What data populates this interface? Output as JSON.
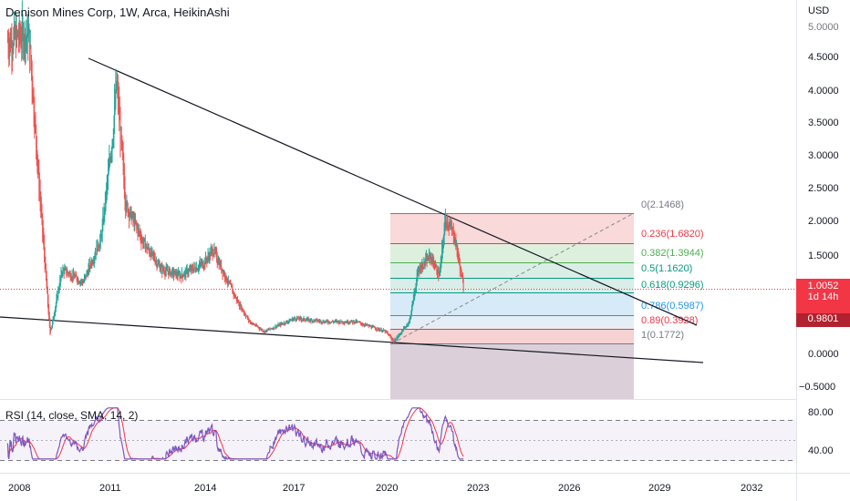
{
  "header": {
    "title": "Denison Mines Corp, 1W, Arca, HeikinAshi",
    "currency": "USD"
  },
  "price_axis": {
    "labels": [
      "4.5000",
      "4.0000",
      "3.5000",
      "3.0000",
      "2.5000",
      "2.0000",
      "1.5000",
      "0.0000",
      "−0.5000"
    ],
    "top_partial": "5.0000"
  },
  "price_tags": {
    "last": "1.0052",
    "countdown": "1d 14h",
    "prev": "0.9801"
  },
  "time_axis": {
    "labels": [
      "2008",
      "2011",
      "2014",
      "2017",
      "2020",
      "2023",
      "2026",
      "2029",
      "2032"
    ]
  },
  "fib": {
    "levels": [
      {
        "label": "0(2.1468)",
        "color": "#787b86"
      },
      {
        "label": "0.236(1.6820)",
        "color": "#f23645"
      },
      {
        "label": "0.382(1.3944)",
        "color": "#4caf50"
      },
      {
        "label": "0.5(1.1620)",
        "color": "#089981"
      },
      {
        "label": "0.618(0.9296)",
        "color": "#089981"
      },
      {
        "label": "0.786(0.5987)",
        "color": "#2196f3"
      },
      {
        "label": "0.89(0.3928)",
        "color": "#f23645"
      },
      {
        "label": "1(0.1772)",
        "color": "#787b86"
      }
    ]
  },
  "rsi": {
    "label": "RSI (14, close, SMA, 14, 2)",
    "axis_labels": [
      "80.00",
      "40.00"
    ]
  },
  "colors": {
    "up": "#26a69a",
    "down": "#ef5350",
    "rsi_line": "#7e57c2",
    "rsi_ma": "#f23645"
  },
  "chart_data": {
    "type": "candlestick",
    "title": "Denison Mines Corp, 1W, Arca, HeikinAshi",
    "x_range": [
      "2008",
      "2032"
    ],
    "y_range": [
      -0.5,
      5.0
    ],
    "price_path": [
      {
        "x": 2007.5,
        "y": 4.8
      },
      {
        "x": 2008.2,
        "y": 4.9
      },
      {
        "x": 2008.5,
        "y": 2.8
      },
      {
        "x": 2008.9,
        "y": 0.3
      },
      {
        "x": 2009.3,
        "y": 1.3
      },
      {
        "x": 2010.0,
        "y": 1.1
      },
      {
        "x": 2010.6,
        "y": 1.8
      },
      {
        "x": 2011.0,
        "y": 3.5
      },
      {
        "x": 2011.1,
        "y": 4.2
      },
      {
        "x": 2011.4,
        "y": 2.3
      },
      {
        "x": 2012.0,
        "y": 1.7
      },
      {
        "x": 2012.6,
        "y": 1.3
      },
      {
        "x": 2013.2,
        "y": 1.2
      },
      {
        "x": 2014.0,
        "y": 1.4
      },
      {
        "x": 2014.3,
        "y": 1.6
      },
      {
        "x": 2015.0,
        "y": 0.9
      },
      {
        "x": 2015.5,
        "y": 0.5
      },
      {
        "x": 2016.0,
        "y": 0.35
      },
      {
        "x": 2017.0,
        "y": 0.55
      },
      {
        "x": 2018.0,
        "y": 0.5
      },
      {
        "x": 2019.0,
        "y": 0.5
      },
      {
        "x": 2020.0,
        "y": 0.35
      },
      {
        "x": 2020.3,
        "y": 0.2
      },
      {
        "x": 2020.8,
        "y": 0.5
      },
      {
        "x": 2021.1,
        "y": 1.3
      },
      {
        "x": 2021.5,
        "y": 1.5
      },
      {
        "x": 2021.8,
        "y": 1.2
      },
      {
        "x": 2022.0,
        "y": 2.1
      },
      {
        "x": 2022.3,
        "y": 1.8
      },
      {
        "x": 2022.6,
        "y": 1.0
      }
    ],
    "trendlines": [
      {
        "name": "upper",
        "from": {
          "x": 2009.5,
          "y": 4.5
        },
        "to": {
          "x": 2029.5,
          "y": 0.25
        }
      },
      {
        "name": "lower",
        "from": {
          "x": 2007.0,
          "y": 0.2
        },
        "to": {
          "x": 2033.0,
          "y": -0.2
        }
      }
    ],
    "last_price": 1.0052
  }
}
